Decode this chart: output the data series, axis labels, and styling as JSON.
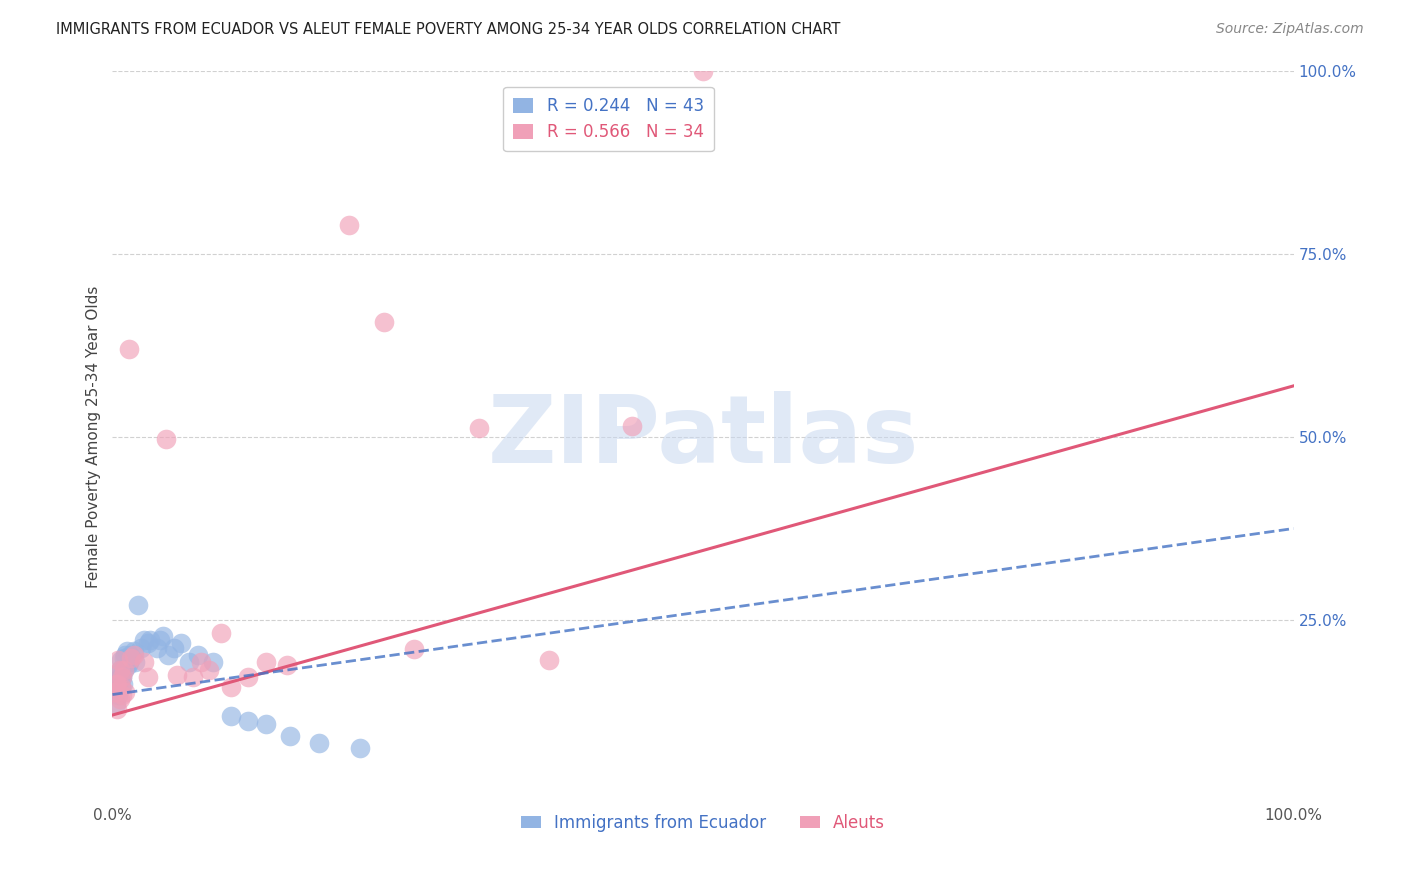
{
  "title": "IMMIGRANTS FROM ECUADOR VS ALEUT FEMALE POVERTY AMONG 25-34 YEAR OLDS CORRELATION CHART",
  "source": "Source: ZipAtlas.com",
  "ylabel": "Female Poverty Among 25-34 Year Olds",
  "xlim": [
    0,
    1.0
  ],
  "ylim": [
    0,
    1.0
  ],
  "right_ytick_positions": [
    1.0,
    0.75,
    0.5,
    0.25
  ],
  "right_ytick_labels": [
    "100.0%",
    "75.0%",
    "50.0%",
    "25.0%"
  ],
  "grid_lines": [
    0.25,
    0.5,
    0.75,
    1.0
  ],
  "blue_color": "#92b4e3",
  "pink_color": "#f0a0b8",
  "blue_line_color": "#4472c4",
  "pink_line_color": "#e05878",
  "legend_R1": "R = 0.244",
  "legend_N1": "N = 43",
  "legend_R2": "R = 0.566",
  "legend_N2": "N = 34",
  "legend_label1": "Immigrants from Ecuador",
  "legend_label2": "Aleuts",
  "blue_x": [
    0.002,
    0.003,
    0.004,
    0.003,
    0.004,
    0.005,
    0.005,
    0.006,
    0.006,
    0.007,
    0.007,
    0.008,
    0.009,
    0.01,
    0.01,
    0.011,
    0.012,
    0.013,
    0.014,
    0.015,
    0.016,
    0.018,
    0.019,
    0.022,
    0.024,
    0.027,
    0.03,
    0.032,
    0.038,
    0.04,
    0.043,
    0.047,
    0.052,
    0.058,
    0.065,
    0.072,
    0.085,
    0.1,
    0.115,
    0.13,
    0.15,
    0.175,
    0.21
  ],
  "blue_y": [
    0.155,
    0.135,
    0.165,
    0.175,
    0.168,
    0.148,
    0.165,
    0.172,
    0.182,
    0.158,
    0.195,
    0.172,
    0.162,
    0.198,
    0.182,
    0.202,
    0.208,
    0.188,
    0.192,
    0.202,
    0.198,
    0.208,
    0.192,
    0.27,
    0.212,
    0.222,
    0.218,
    0.222,
    0.212,
    0.222,
    0.228,
    0.202,
    0.212,
    0.218,
    0.192,
    0.202,
    0.192,
    0.118,
    0.112,
    0.108,
    0.092,
    0.082,
    0.075
  ],
  "pink_x": [
    0.002,
    0.003,
    0.004,
    0.004,
    0.005,
    0.006,
    0.006,
    0.007,
    0.008,
    0.008,
    0.01,
    0.011,
    0.014,
    0.016,
    0.018,
    0.027,
    0.03,
    0.045,
    0.055,
    0.068,
    0.075,
    0.082,
    0.092,
    0.1,
    0.115,
    0.13,
    0.148,
    0.2,
    0.23,
    0.255,
    0.31,
    0.37,
    0.44,
    0.5
  ],
  "pink_y": [
    0.152,
    0.162,
    0.162,
    0.128,
    0.195,
    0.182,
    0.142,
    0.158,
    0.172,
    0.148,
    0.182,
    0.152,
    0.62,
    0.198,
    0.202,
    0.192,
    0.172,
    0.498,
    0.175,
    0.172,
    0.192,
    0.182,
    0.232,
    0.158,
    0.172,
    0.192,
    0.188,
    0.79,
    0.658,
    0.21,
    0.512,
    0.195,
    0.515,
    1.0
  ],
  "blue_trend_x": [
    0.0,
    1.0
  ],
  "blue_trend_y": [
    0.148,
    0.375
  ],
  "pink_trend_x": [
    0.0,
    1.0
  ],
  "pink_trend_y": [
    0.12,
    0.57
  ],
  "watermark_text": "ZIPatlas",
  "watermark_color": "#c8d8f0",
  "watermark_alpha": 0.55
}
